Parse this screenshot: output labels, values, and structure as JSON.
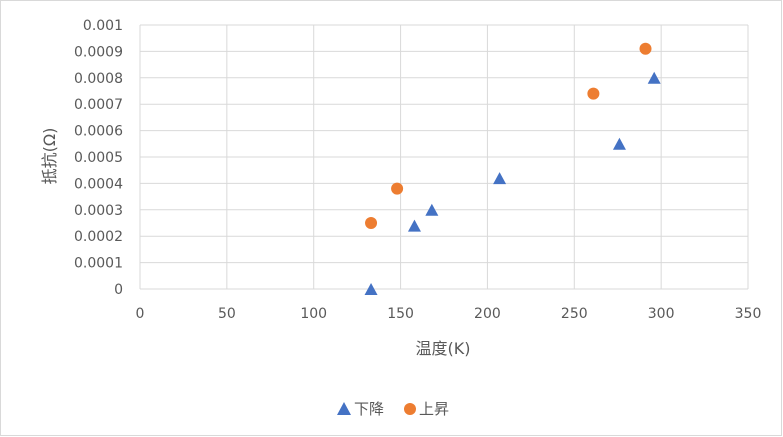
{
  "chart_data": {
    "type": "scatter",
    "title": "",
    "xlabel": "温度(K)",
    "ylabel": "抵抗(Ω)",
    "xlim": [
      0,
      350
    ],
    "ylim": [
      0,
      0.001
    ],
    "x_ticks": [
      0,
      50,
      100,
      150,
      200,
      250,
      300,
      350
    ],
    "x_tick_labels": [
      "0",
      "50",
      "100",
      "150",
      "200",
      "250",
      "300",
      "350"
    ],
    "y_ticks": [
      0,
      0.0001,
      0.0002,
      0.0003,
      0.0004,
      0.0005,
      0.0006,
      0.0007,
      0.0008,
      0.0009,
      0.001
    ],
    "y_tick_labels": [
      "0",
      "0.0001",
      "0.0002",
      "0.0003",
      "0.0004",
      "0.0005",
      "0.0006",
      "0.0007",
      "0.0008",
      "0.0009",
      "0.001"
    ],
    "grid": true,
    "legend_position": "bottom",
    "series": [
      {
        "name": "下降",
        "marker": "triangle",
        "color": "#4472c4",
        "points": [
          {
            "x": 133,
            "y": 0.0
          },
          {
            "x": 158,
            "y": 0.00024
          },
          {
            "x": 168,
            "y": 0.0003
          },
          {
            "x": 207,
            "y": 0.00042
          },
          {
            "x": 276,
            "y": 0.00055
          },
          {
            "x": 296,
            "y": 0.0008
          }
        ]
      },
      {
        "name": "上昇",
        "marker": "circle",
        "color": "#ed7d31",
        "points": [
          {
            "x": 133,
            "y": 0.00025
          },
          {
            "x": 148,
            "y": 0.00038
          },
          {
            "x": 261,
            "y": 0.00074
          },
          {
            "x": 291,
            "y": 0.00091
          }
        ]
      }
    ]
  }
}
